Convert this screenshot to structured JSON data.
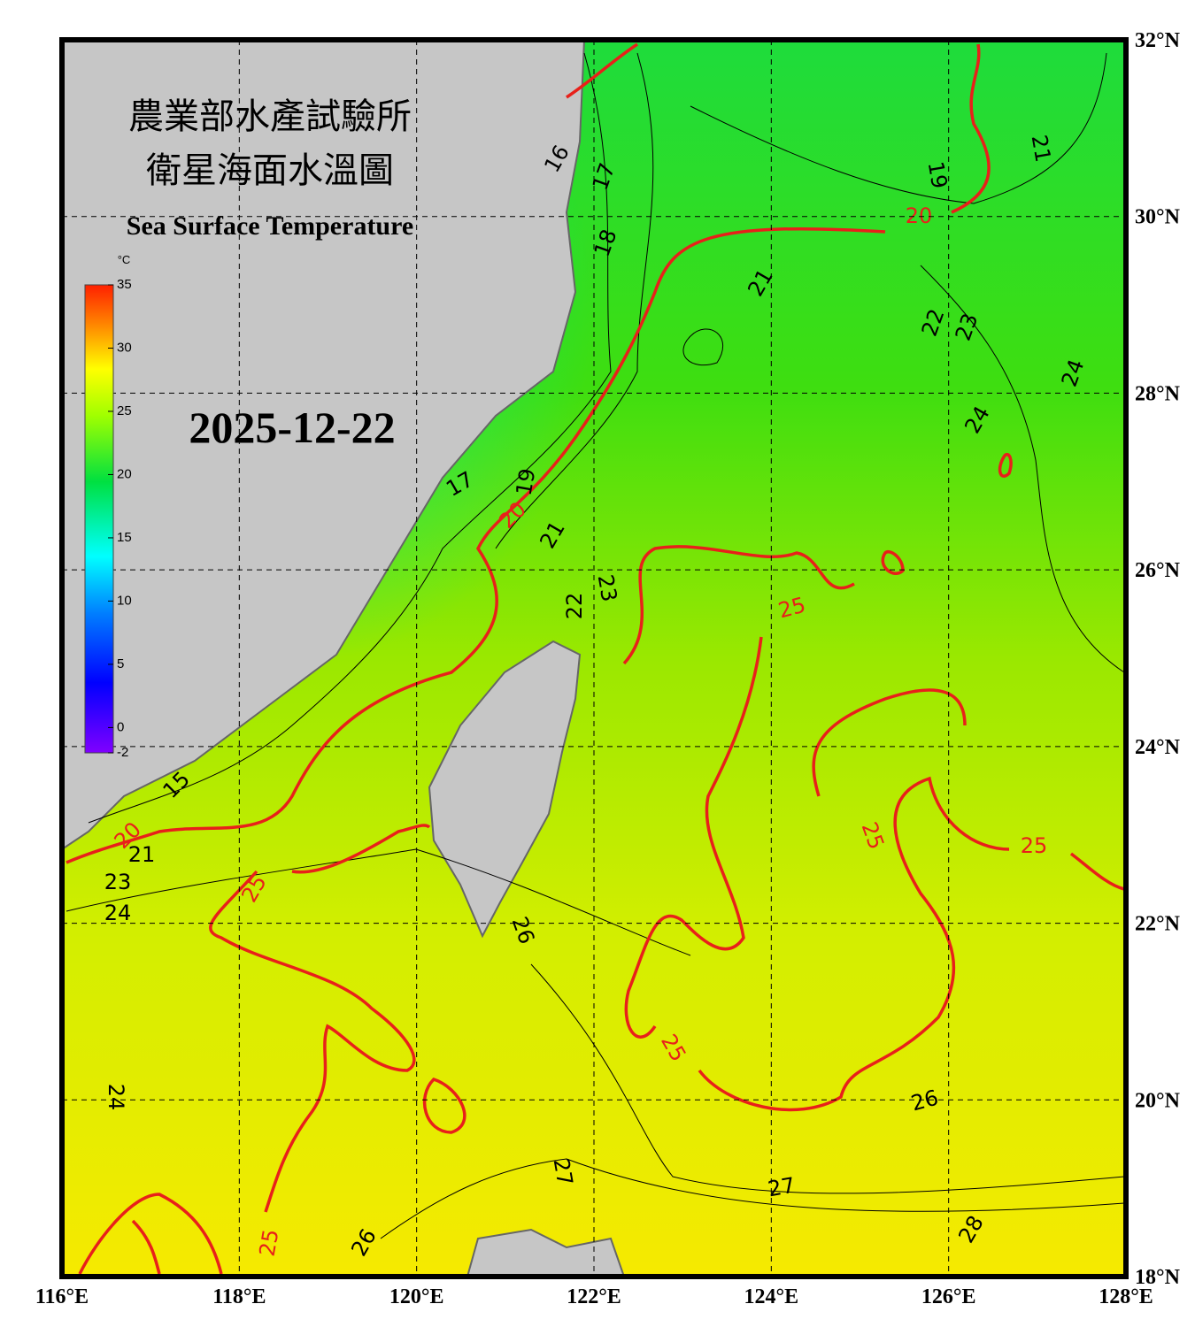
{
  "header": {
    "title_zh_1": "農業部水產試驗所",
    "title_zh_2": "衛星海面水溫圖",
    "title_en": "Sea Surface Temperature"
  },
  "date": "2025-12-22",
  "colorbar": {
    "unit": "°C",
    "range": [
      -2,
      35
    ],
    "ticks": [
      35,
      30,
      25,
      20,
      15,
      10,
      5,
      0,
      -2
    ]
  },
  "lon_ticks": [
    {
      "value": 116,
      "label": "116°E"
    },
    {
      "value": 118,
      "label": "118°E"
    },
    {
      "value": 120,
      "label": "120°E"
    },
    {
      "value": 122,
      "label": "122°E"
    },
    {
      "value": 124,
      "label": "124°E"
    },
    {
      "value": 126,
      "label": "126°E"
    },
    {
      "value": 128,
      "label": "128°E"
    }
  ],
  "lat_ticks": [
    {
      "value": 32,
      "label": "32°N"
    },
    {
      "value": 30,
      "label": "30°N"
    },
    {
      "value": 28,
      "label": "28°N"
    },
    {
      "value": 26,
      "label": "26°N"
    },
    {
      "value": 24,
      "label": "24°N"
    },
    {
      "value": 22,
      "label": "22°N"
    },
    {
      "value": 20,
      "label": "20°N"
    },
    {
      "value": 18,
      "label": "18°N"
    }
  ],
  "lon_range": [
    116,
    128
  ],
  "lat_range": [
    18,
    32
  ],
  "contour_labels": [
    16,
    17,
    18,
    19,
    20,
    21,
    21,
    22,
    23,
    24,
    24,
    17,
    19,
    20,
    21,
    22,
    23,
    25,
    25,
    25,
    25,
    24,
    23,
    21,
    15,
    20,
    26,
    25,
    26,
    27,
    27,
    28,
    26,
    25,
    24
  ]
}
